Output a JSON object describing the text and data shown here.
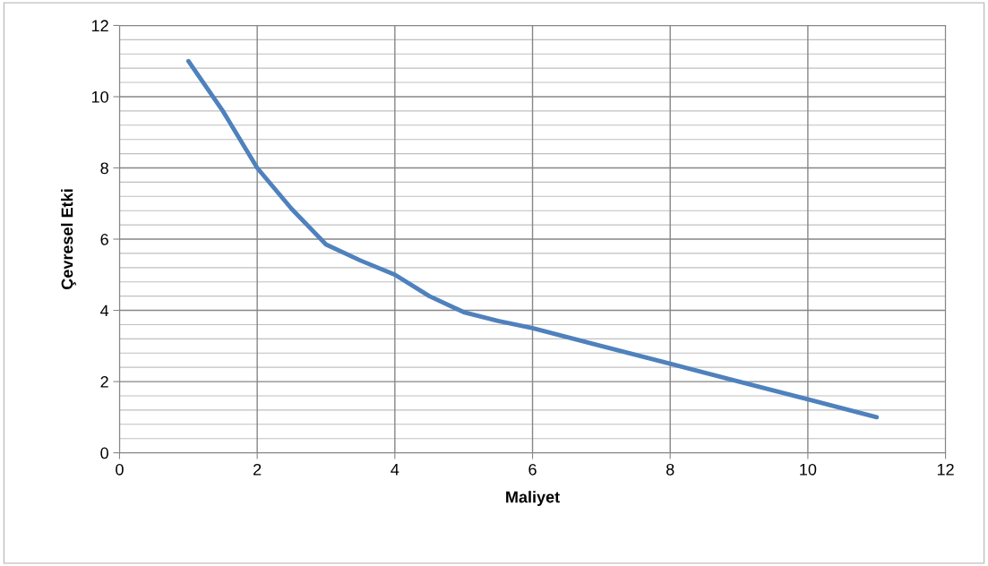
{
  "chart_data": {
    "type": "line",
    "xlabel": "Maliyet",
    "ylabel": "Çevresel Etki",
    "x": [
      1,
      1.5,
      2,
      2.5,
      3,
      3.5,
      4,
      4.5,
      5,
      5.5,
      6,
      7,
      8,
      9,
      10,
      11
    ],
    "series": [
      {
        "color": "#4f81bd",
        "values": [
          11,
          9.6,
          8,
          6.85,
          5.85,
          5.4,
          5,
          4.4,
          3.95,
          3.7,
          3.5,
          3,
          2.5,
          2,
          1.5,
          1
        ]
      }
    ],
    "xlim": [
      0,
      12
    ],
    "xticks": [
      0,
      2,
      4,
      6,
      8,
      10,
      12
    ],
    "ylim": [
      0,
      12
    ],
    "yticks": [
      0,
      2,
      4,
      6,
      8,
      10,
      12
    ],
    "grid": true,
    "legend": false,
    "marker": "none",
    "line_style": "solid"
  }
}
